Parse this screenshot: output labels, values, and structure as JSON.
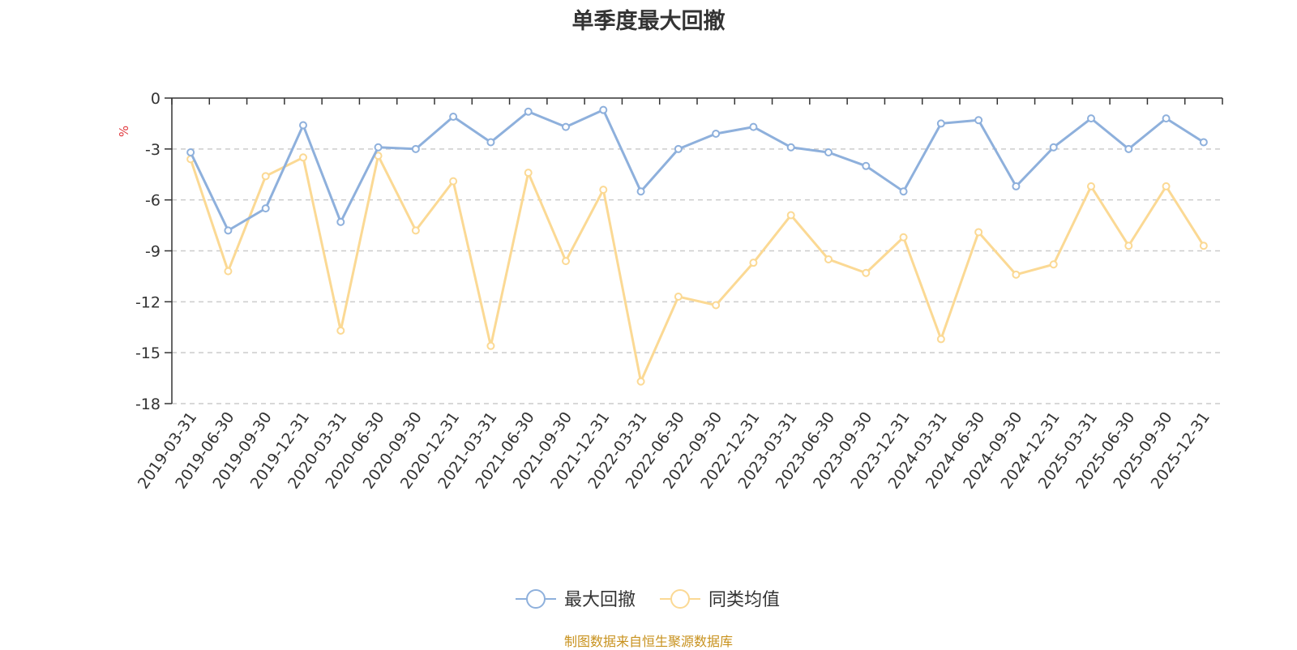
{
  "title": "单季度最大回撤",
  "source": "制图数据来自恒生聚源数据库",
  "chart_data": {
    "type": "line",
    "title": "单季度最大回撤",
    "ylabel": "%",
    "xlabel": "",
    "ylim": [
      -18,
      0
    ],
    "yticks": [
      0,
      -3,
      -6,
      -9,
      -12,
      -15,
      -18
    ],
    "grid": true,
    "legend_position": "bottom-center",
    "categories": [
      "2019-03-31",
      "2019-06-30",
      "2019-09-30",
      "2019-12-31",
      "2020-03-31",
      "2020-06-30",
      "2020-09-30",
      "2020-12-31",
      "2021-03-31",
      "2021-06-30",
      "2021-09-30",
      "2021-12-31",
      "2022-03-31",
      "2022-06-30",
      "2022-09-30",
      "2022-12-31",
      "2023-03-31",
      "2023-06-30",
      "2023-09-30",
      "2023-12-31",
      "2024-03-31",
      "2024-06-30",
      "2024-09-30",
      "2024-12-31",
      "2025-03-31",
      "2025-06-30",
      "2025-09-30",
      "2025-12-31"
    ],
    "series": [
      {
        "name": "最大回撤",
        "color": "#8eb0dc",
        "values": [
          -3.2,
          -7.8,
          -6.5,
          -1.6,
          -7.3,
          -2.9,
          -3.0,
          -1.1,
          -2.6,
          -0.8,
          -1.7,
          -0.7,
          -5.5,
          -3.0,
          -2.1,
          -1.7,
          -2.9,
          -3.2,
          -4.0,
          -5.5,
          -1.5,
          -1.3,
          -5.2,
          -2.9,
          -1.2,
          -3.0,
          -1.2,
          -2.6
        ]
      },
      {
        "name": "同类均值",
        "color": "#fbd994",
        "values": [
          -3.6,
          -10.2,
          -4.6,
          -3.5,
          -13.7,
          -3.4,
          -7.8,
          -4.9,
          -14.6,
          -4.4,
          -9.6,
          -5.4,
          -16.7,
          -11.7,
          -12.2,
          -9.7,
          -6.9,
          -9.5,
          -10.3,
          -8.2,
          -14.2,
          -7.9,
          -10.4,
          -9.8,
          -5.2,
          -8.7,
          -5.2,
          -8.7
        ]
      }
    ]
  }
}
